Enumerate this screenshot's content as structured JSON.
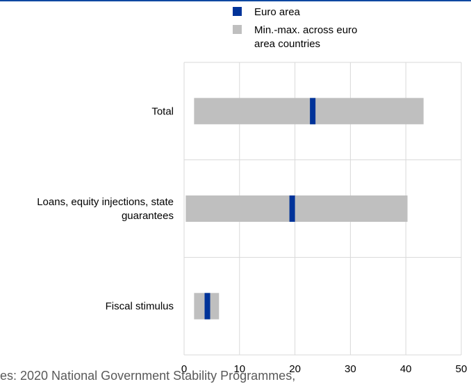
{
  "chart_data": {
    "type": "bar",
    "orientation": "horizontal",
    "categories": [
      "Total",
      "Loans, equity injections, state guarantees",
      "Fiscal stimulus"
    ],
    "category_lines": [
      [
        "Total"
      ],
      [
        "Loans, equity injections, state",
        "guarantees"
      ],
      [
        "Fiscal stimulus"
      ]
    ],
    "series": [
      {
        "name": "Min.-max. across euro area countries",
        "kind": "range",
        "min": [
          1.8,
          0.3,
          1.8
        ],
        "max": [
          43.2,
          40.3,
          6.3
        ]
      },
      {
        "name": "Euro area",
        "kind": "marker",
        "values": [
          23.2,
          19.5,
          4.2
        ]
      }
    ],
    "legend": [
      {
        "label_lines": [
          "Euro area"
        ],
        "color": "#003399"
      },
      {
        "label_lines": [
          "Min.-max. across euro",
          "area countries"
        ],
        "color": "#bfbfbf"
      }
    ],
    "x_ticks": [
      0,
      10,
      20,
      30,
      40,
      50
    ],
    "xlim": [
      0,
      50
    ],
    "grid": true,
    "legend_position": "top",
    "source_text": "es: 2020 National Government Stability Programmes,"
  },
  "colors": {
    "euro_area": "#003399",
    "range": "#bfbfbf",
    "grid": "#d9d9d9",
    "top_rule": "#0d47a1"
  }
}
